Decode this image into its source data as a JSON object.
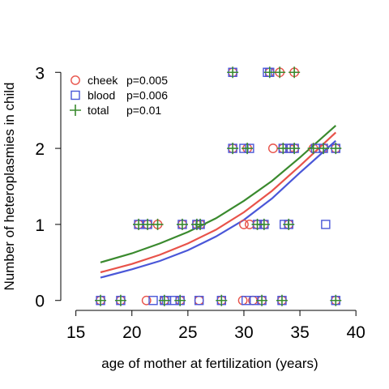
{
  "chart_data": {
    "type": "scatter",
    "title": "",
    "xlabel": "age of mother at fertilization (years)",
    "ylabel": "Number of heteroplasmies in child",
    "xlim": [
      13,
      41
    ],
    "ylim": [
      -0.12,
      3.12
    ],
    "xticks": [
      15,
      20,
      25,
      30,
      35,
      40
    ],
    "yticks": [
      0,
      1,
      2,
      3
    ],
    "grid": false,
    "legend_position": "top-left",
    "series": [
      {
        "name": "cheek",
        "stat_label": "p=0.005",
        "marker": "circle",
        "color": "#e8534a",
        "points": [
          [
            17.2,
            0
          ],
          [
            19.0,
            0
          ],
          [
            21.3,
            0
          ],
          [
            22.9,
            0
          ],
          [
            24.3,
            0
          ],
          [
            26.0,
            0
          ],
          [
            28.0,
            0
          ],
          [
            29.9,
            0
          ],
          [
            30.8,
            0
          ],
          [
            31.6,
            0
          ],
          [
            33.4,
            0
          ],
          [
            38.2,
            0
          ],
          [
            20.6,
            1
          ],
          [
            21.4,
            1
          ],
          [
            22.3,
            1
          ],
          [
            24.5,
            1
          ],
          [
            25.8,
            1
          ],
          [
            26.1,
            1
          ],
          [
            30.0,
            1
          ],
          [
            30.5,
            1
          ],
          [
            31.2,
            1
          ],
          [
            31.8,
            1
          ],
          [
            34.0,
            1
          ],
          [
            29.0,
            2
          ],
          [
            30.3,
            2
          ],
          [
            32.6,
            2
          ],
          [
            33.5,
            2
          ],
          [
            34.1,
            2
          ],
          [
            34.5,
            2
          ],
          [
            36.2,
            2
          ],
          [
            37.1,
            2
          ],
          [
            38.2,
            2
          ],
          [
            29.0,
            3
          ],
          [
            32.3,
            3
          ],
          [
            33.2,
            3
          ],
          [
            34.5,
            3
          ]
        ]
      },
      {
        "name": "blood",
        "stat_label": "p=0.006",
        "marker": "square",
        "color": "#4a57d8",
        "points": [
          [
            17.2,
            0
          ],
          [
            19.0,
            0
          ],
          [
            21.9,
            0
          ],
          [
            22.9,
            0
          ],
          [
            23.1,
            0
          ],
          [
            23.8,
            0
          ],
          [
            24.3,
            0
          ],
          [
            26.0,
            0
          ],
          [
            28.0,
            0
          ],
          [
            30.2,
            0
          ],
          [
            30.9,
            0
          ],
          [
            31.6,
            0
          ],
          [
            33.4,
            0
          ],
          [
            38.2,
            0
          ],
          [
            20.6,
            1
          ],
          [
            21.4,
            1
          ],
          [
            24.5,
            1
          ],
          [
            25.8,
            1
          ],
          [
            26.1,
            1
          ],
          [
            31.2,
            1
          ],
          [
            31.8,
            1
          ],
          [
            33.6,
            1
          ],
          [
            34.0,
            1
          ],
          [
            37.3,
            1
          ],
          [
            29.0,
            2
          ],
          [
            30.0,
            2
          ],
          [
            30.5,
            2
          ],
          [
            33.5,
            2
          ],
          [
            34.1,
            2
          ],
          [
            34.5,
            2
          ],
          [
            36.4,
            2
          ],
          [
            37.1,
            2
          ],
          [
            38.2,
            2
          ],
          [
            29.0,
            3
          ],
          [
            32.1,
            3
          ],
          [
            32.3,
            3
          ]
        ]
      },
      {
        "name": "total",
        "stat_label": "p=0.01",
        "marker": "plus",
        "color": "#3a8a2e",
        "points": [
          [
            17.2,
            0
          ],
          [
            19.0,
            0
          ],
          [
            22.9,
            0
          ],
          [
            24.3,
            0
          ],
          [
            28.0,
            0
          ],
          [
            31.6,
            0
          ],
          [
            33.4,
            0
          ],
          [
            38.2,
            0
          ],
          [
            20.6,
            1
          ],
          [
            21.4,
            1
          ],
          [
            22.3,
            1
          ],
          [
            24.5,
            1
          ],
          [
            25.8,
            1
          ],
          [
            26.1,
            1
          ],
          [
            31.2,
            1
          ],
          [
            31.8,
            1
          ],
          [
            34.0,
            1
          ],
          [
            29.0,
            2
          ],
          [
            30.3,
            2
          ],
          [
            33.5,
            2
          ],
          [
            34.5,
            2
          ],
          [
            36.2,
            2
          ],
          [
            37.1,
            2
          ],
          [
            38.2,
            2
          ],
          [
            29.0,
            3
          ],
          [
            32.3,
            3
          ],
          [
            33.2,
            3
          ],
          [
            34.5,
            3
          ]
        ]
      }
    ],
    "fits": [
      {
        "series": "total",
        "color": "#3a8a2e",
        "x": [
          17.2,
          20,
          22.5,
          25,
          27.5,
          30,
          32.5,
          35,
          38.2
        ],
        "y": [
          0.5,
          0.62,
          0.75,
          0.9,
          1.08,
          1.31,
          1.57,
          1.88,
          2.3
        ]
      },
      {
        "series": "cheek",
        "color": "#e8534a",
        "x": [
          17.2,
          20,
          22.5,
          25,
          27.5,
          30,
          32.5,
          35,
          38.2
        ],
        "y": [
          0.37,
          0.48,
          0.6,
          0.75,
          0.93,
          1.16,
          1.44,
          1.77,
          2.21
        ]
      },
      {
        "series": "blood",
        "color": "#4a57d8",
        "x": [
          17.2,
          20,
          22.5,
          25,
          27.5,
          30,
          32.5,
          35,
          38.2
        ],
        "y": [
          0.3,
          0.41,
          0.52,
          0.66,
          0.84,
          1.06,
          1.34,
          1.68,
          2.1
        ]
      }
    ]
  }
}
